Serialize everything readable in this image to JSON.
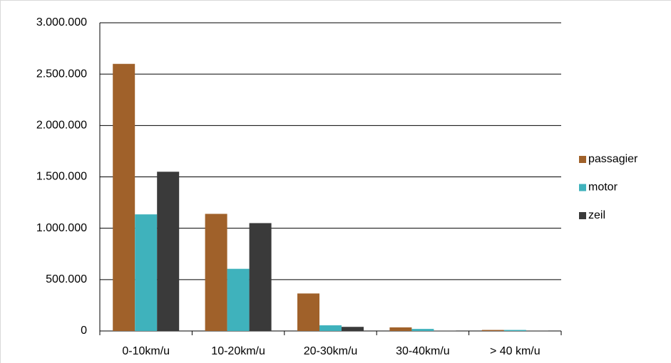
{
  "chart_data": {
    "type": "bar",
    "categories": [
      "0-10km/u",
      "10-20km/u",
      "20-30km/u",
      "30-40km/u",
      "> 40 km/u"
    ],
    "series": [
      {
        "name": "passagier",
        "color": "#a0612a",
        "values": [
          2600000,
          1140000,
          365000,
          35000,
          10000
        ]
      },
      {
        "name": "motor",
        "color": "#3fb2bc",
        "values": [
          1135000,
          605000,
          55000,
          20000,
          10000
        ]
      },
      {
        "name": "zeil",
        "color": "#3a3a3a",
        "values": [
          1550000,
          1050000,
          40000,
          3000,
          2000
        ]
      }
    ],
    "ylim": [
      0,
      3000000
    ],
    "yticks": [
      0,
      {
        "value": 500000,
        "label": "500.000"
      },
      {
        "value": 1000000,
        "label": "1.000.000"
      },
      {
        "value": 1500000,
        "label": "1.500.000"
      },
      {
        "value": 2000000,
        "label": "2.000.000"
      },
      {
        "value": 2500000,
        "label": "2.500.000"
      },
      {
        "value": 3000000,
        "label": "3.000.000"
      }
    ],
    "grid": true,
    "legend": "right"
  }
}
